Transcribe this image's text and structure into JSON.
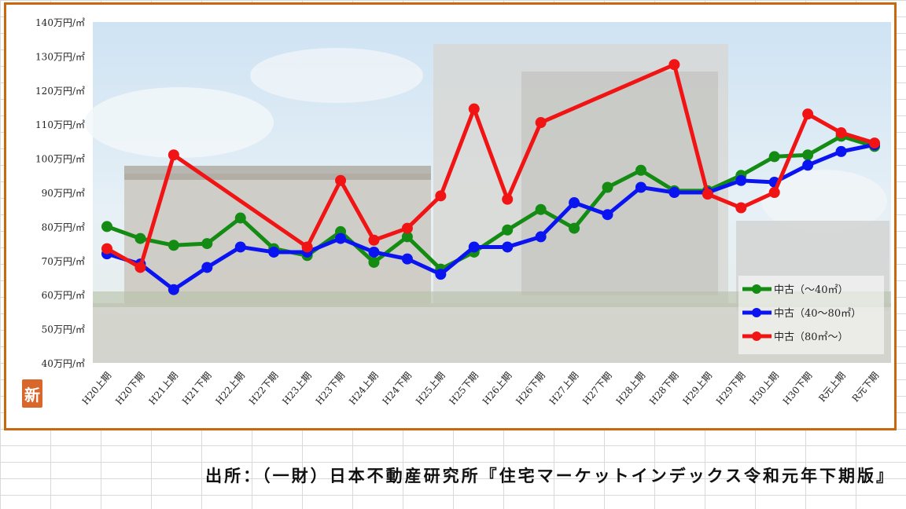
{
  "source_note": "出所：（一財）日本不動産研究所『住宅マーケットインデックス令和元年下期版』",
  "logo_glyph": "新",
  "colors": {
    "frame": "#c9690f",
    "green": "#148c14",
    "blue": "#0a14f0",
    "red": "#f01414"
  },
  "chart_data": {
    "type": "line",
    "categories": [
      "H20上期",
      "H20下期",
      "H21上期",
      "H21下期",
      "H22上期",
      "H22下期",
      "H23上期",
      "H23下期",
      "H24上期",
      "H24下期",
      "H25上期",
      "H25下期",
      "H26上期",
      "H26下期",
      "H27上期",
      "H27下期",
      "H28上期",
      "H28下期",
      "H29上期",
      "H29下期",
      "H30上期",
      "H30下期",
      "R元上期",
      "R元下期"
    ],
    "y_tick_labels": [
      "140万円/㎡",
      "130万円/㎡",
      "120万円/㎡",
      "110万円/㎡",
      "100万円/㎡",
      "90万円/㎡",
      "80万円/㎡",
      "70万円/㎡",
      "60万円/㎡",
      "50万円/㎡",
      "40万円/㎡"
    ],
    "ylim": [
      40,
      140
    ],
    "y_step": 10,
    "legend_position": "bottom-right",
    "series": [
      {
        "name": "中古（～40㎡）",
        "color": "#148c14",
        "values": [
          80,
          76.5,
          74.5,
          75,
          82.5,
          73.5,
          71.5,
          78.5,
          69.5,
          77,
          67.5,
          72.5,
          79,
          85,
          79.5,
          91.5,
          96.5,
          90.5,
          90.5,
          95,
          100.5,
          101,
          106.5,
          103.5
        ]
      },
      {
        "name": "中古（40～80㎡）",
        "color": "#0a14f0",
        "values": [
          72,
          69,
          61.5,
          68,
          74,
          72.5,
          72.5,
          76.5,
          72.5,
          70.5,
          66,
          74,
          74,
          77,
          87,
          83.5,
          91.5,
          90,
          90,
          93.5,
          93,
          98,
          102,
          104
        ]
      },
      {
        "name": "中古（80㎡～）",
        "color": "#f01414",
        "values": [
          73.5,
          68,
          101,
          null,
          null,
          null,
          74,
          93.5,
          76,
          79.5,
          89,
          114.5,
          88,
          110.5,
          null,
          null,
          null,
          127.5,
          89.5,
          85.5,
          90,
          113,
          107.5,
          104.5
        ]
      }
    ],
    "connect_gaps": true
  }
}
